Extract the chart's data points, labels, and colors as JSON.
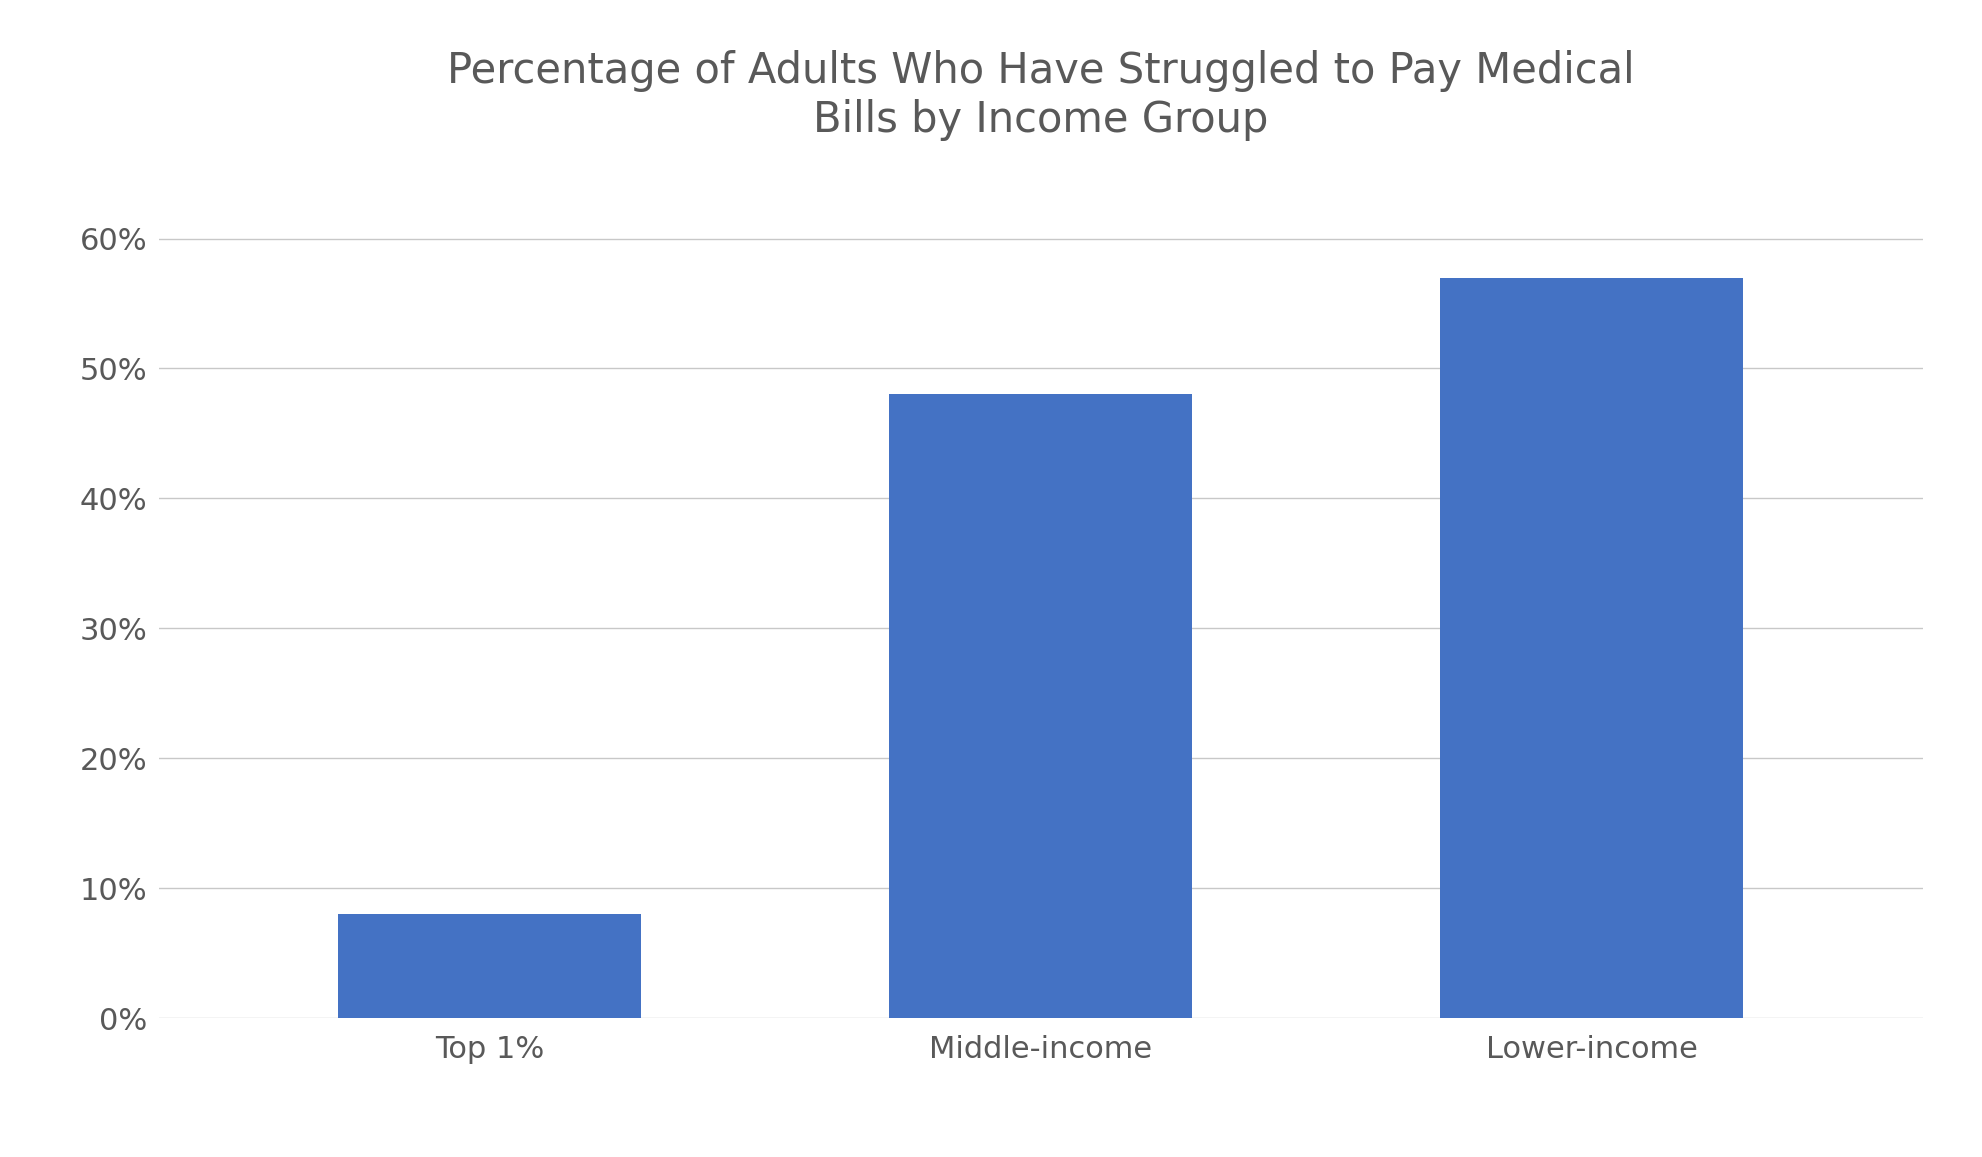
{
  "title": "Percentage of Adults Who Have Struggled to Pay Medical\nBills by Income Group",
  "categories": [
    "Top 1%",
    "Middle-income",
    "Lower-income"
  ],
  "values": [
    8,
    48,
    57
  ],
  "bar_color": "#4472C4",
  "background_color": "#FFFFFF",
  "ylim": [
    0,
    0.65
  ],
  "yticks": [
    0,
    0.1,
    0.2,
    0.3,
    0.4,
    0.5,
    0.6
  ],
  "ytick_labels": [
    "0%",
    "10%",
    "20%",
    "30%",
    "40%",
    "50%",
    "60%"
  ],
  "title_fontsize": 30,
  "tick_fontsize": 22,
  "title_color": "#595959",
  "tick_color": "#595959",
  "grid_color": "#C8C8C8",
  "bar_width": 0.55,
  "figsize": [
    19.82,
    11.57
  ],
  "dpi": 100
}
